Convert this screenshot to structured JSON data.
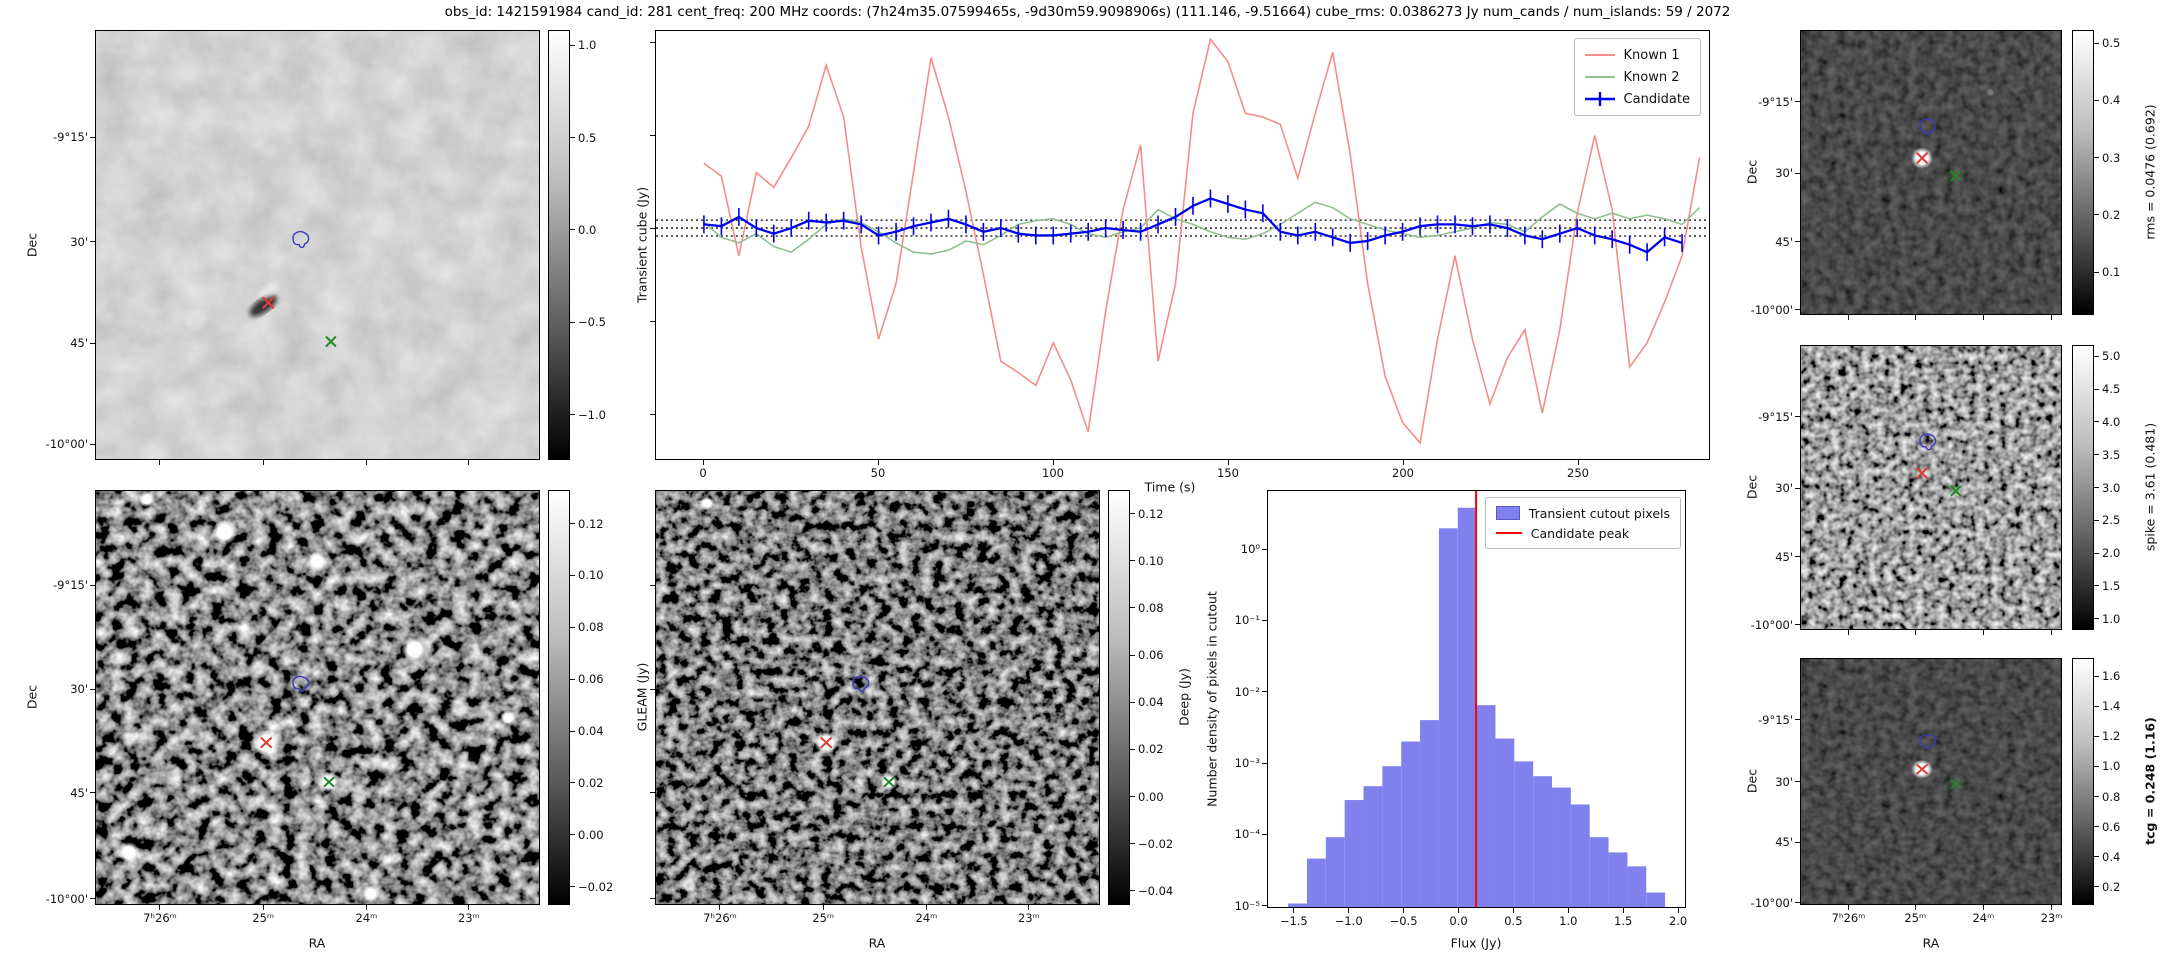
{
  "title": "obs_id: 1421591984 cand_id: 281 cent_freq: 200 MHz coords: (7h24m35.07599465s, -9d30m59.9098906s) (111.146, -9.51664) cube_rms: 0.0386273 Jy num_cands / num_islands: 59 / 2072",
  "axis_labels": {
    "dec": "Dec",
    "ra": "RA",
    "time": "Time (s)",
    "flux": "Flux (Jy)",
    "hist_y": "Number density of pixels in cutout"
  },
  "dec_ticks": [
    "-9°15'",
    "30'",
    "45'",
    "-10°00'"
  ],
  "ra_ticks": [
    "7ʰ26ᵐ",
    "25ᵐ",
    "24ᵐ",
    "23ᵐ"
  ],
  "colorbars": {
    "transient_cube": {
      "label": "Transient cube (Jy)",
      "ticks": [
        "1.0",
        "0.5",
        "0.0",
        "−0.5",
        "−1.0"
      ]
    },
    "rms": {
      "label": "rms = 0.0476 (0.692)",
      "ticks": [
        "0.5",
        "0.4",
        "0.3",
        "0.2",
        "0.1"
      ]
    },
    "spike": {
      "label": "spike = 3.61 (0.481)",
      "ticks": [
        "5.0",
        "4.5",
        "4.0",
        "3.5",
        "3.0",
        "2.5",
        "2.0",
        "1.5",
        "1.0"
      ]
    },
    "tcg": {
      "label": "tcg = 0.248 (1.16)",
      "ticks": [
        "1.6",
        "1.4",
        "1.2",
        "1.0",
        "0.8",
        "0.6",
        "0.4",
        "0.2"
      ]
    },
    "gleam": {
      "label": "GLEAM (Jy)",
      "ticks": [
        "0.12",
        "0.10",
        "0.08",
        "0.06",
        "0.04",
        "0.02",
        "0.00",
        "−0.02"
      ]
    },
    "deep": {
      "label": "Deep (Jy)",
      "ticks": [
        "0.12",
        "0.10",
        "0.08",
        "0.06",
        "0.04",
        "0.02",
        "0.00",
        "−0.02",
        "−0.04"
      ]
    }
  },
  "markers": {
    "candidate_marker": "red-x",
    "known_source_marker": "green-x",
    "island_contour": "blue-contour"
  },
  "chart_data": [
    {
      "type": "line",
      "title": "",
      "xlabel": "Time (s)",
      "ylabel": "",
      "xlim": [
        -15,
        297
      ],
      "ylim": [
        -1.25,
        1.07
      ],
      "x_ticks": [
        0,
        50,
        100,
        150,
        200,
        250
      ],
      "reference_lines": [
        0.043,
        0.0,
        -0.043
      ],
      "legend_position": "upper right",
      "series": [
        {
          "name": "Known 1",
          "color": "#f58c87",
          "x": [
            0,
            5,
            10,
            15,
            20,
            25,
            30,
            35,
            40,
            45,
            50,
            55,
            60,
            65,
            70,
            75,
            80,
            85,
            90,
            95,
            100,
            105,
            110,
            115,
            120,
            125,
            130,
            135,
            140,
            145,
            150,
            155,
            160,
            165,
            170,
            175,
            180,
            185,
            190,
            195,
            200,
            205,
            210,
            215,
            220,
            225,
            230,
            235,
            240,
            245,
            250,
            255,
            260,
            265,
            270,
            275,
            280,
            285
          ],
          "values": [
            0.35,
            0.28,
            -0.15,
            0.3,
            0.22,
            0.38,
            0.55,
            0.88,
            0.6,
            -0.1,
            -0.6,
            -0.3,
            0.3,
            0.92,
            0.6,
            0.2,
            -0.25,
            -0.72,
            -0.78,
            -0.85,
            -0.62,
            -0.82,
            -1.1,
            -0.45,
            0.1,
            0.45,
            -0.72,
            -0.3,
            0.62,
            1.02,
            0.9,
            0.62,
            0.6,
            0.56,
            0.27,
            0.62,
            0.95,
            0.4,
            -0.3,
            -0.8,
            -1.05,
            -1.16,
            -0.6,
            -0.15,
            -0.6,
            -0.95,
            -0.7,
            -0.55,
            -1.0,
            -0.55,
            0.08,
            0.5,
            0.1,
            -0.75,
            -0.62,
            -0.4,
            -0.15,
            0.38
          ]
        },
        {
          "name": "Known 2",
          "color": "#8fbf8f",
          "x": [
            0,
            5,
            10,
            15,
            20,
            25,
            30,
            35,
            40,
            45,
            50,
            55,
            60,
            65,
            70,
            75,
            80,
            85,
            90,
            95,
            100,
            105,
            110,
            115,
            120,
            125,
            130,
            135,
            140,
            145,
            150,
            155,
            160,
            165,
            170,
            175,
            180,
            185,
            190,
            195,
            200,
            205,
            210,
            215,
            220,
            225,
            230,
            235,
            240,
            245,
            250,
            255,
            260,
            265,
            270,
            275,
            280,
            285
          ],
          "values": [
            0.03,
            -0.05,
            -0.08,
            -0.03,
            -0.1,
            -0.13,
            -0.06,
            0.02,
            0.05,
            0.03,
            -0.02,
            -0.08,
            -0.13,
            -0.14,
            -0.12,
            -0.07,
            -0.09,
            -0.04,
            0.02,
            0.04,
            0.05,
            0.02,
            -0.03,
            -0.05,
            -0.02,
            0.0,
            0.1,
            0.05,
            0.02,
            -0.02,
            -0.05,
            -0.06,
            -0.03,
            0.02,
            0.08,
            0.14,
            0.11,
            0.05,
            0.02,
            -0.01,
            -0.03,
            -0.05,
            -0.04,
            -0.02,
            0.0,
            0.03,
            0.02,
            -0.02,
            0.06,
            0.13,
            0.08,
            0.05,
            0.08,
            0.05,
            0.07,
            0.05,
            0.02,
            0.11
          ]
        },
        {
          "name": "Candidate",
          "color": "#0000ee",
          "yerr": 0.05,
          "x": [
            0,
            5,
            10,
            15,
            20,
            25,
            30,
            35,
            40,
            45,
            50,
            55,
            60,
            65,
            70,
            75,
            80,
            85,
            90,
            95,
            100,
            105,
            110,
            115,
            120,
            125,
            130,
            135,
            140,
            145,
            150,
            155,
            160,
            165,
            170,
            175,
            180,
            185,
            190,
            195,
            200,
            205,
            210,
            215,
            220,
            225,
            230,
            235,
            240,
            245,
            250,
            255,
            260,
            265,
            270,
            275,
            280
          ],
          "values": [
            0.02,
            0.01,
            0.06,
            0.0,
            -0.03,
            0.0,
            0.04,
            0.03,
            0.04,
            0.02,
            -0.04,
            -0.02,
            0.01,
            0.03,
            0.05,
            0.02,
            -0.02,
            0.0,
            -0.03,
            -0.04,
            -0.04,
            -0.03,
            -0.02,
            0.0,
            -0.01,
            -0.02,
            0.02,
            0.06,
            0.12,
            0.16,
            0.13,
            0.1,
            0.08,
            -0.02,
            -0.04,
            -0.02,
            -0.05,
            -0.08,
            -0.07,
            -0.04,
            -0.02,
            0.01,
            0.02,
            0.02,
            0.01,
            0.02,
            0.0,
            -0.04,
            -0.06,
            -0.03,
            0.0,
            -0.04,
            -0.06,
            -0.09,
            -0.13,
            -0.05,
            -0.08
          ]
        }
      ]
    },
    {
      "type": "bar",
      "title": "",
      "xlabel": "Flux (Jy)",
      "ylabel": "Number density of pixels in cutout",
      "yscale": "log",
      "xlim": [
        -1.74,
        2.08
      ],
      "ylim": [
        5e-06,
        6.7
      ],
      "x_ticks": [
        -1.5,
        -1.0,
        -0.5,
        0.0,
        0.5,
        1.0,
        1.5,
        2.0
      ],
      "x_tick_labels": [
        "−1.5",
        "−1.0",
        "−0.5",
        "0.0",
        "0.5",
        "1.0",
        "1.5",
        "2.0"
      ],
      "y_tick_labels": [
        "10⁰",
        "10⁻¹",
        "10⁻²",
        "10⁻³",
        "10⁻⁴",
        "10⁻⁵"
      ],
      "bin_edges": [
        -1.56,
        -1.3875,
        -1.215,
        -1.0425,
        -0.87,
        -0.6975,
        -0.525,
        -0.3525,
        -0.18,
        -0.0075,
        0.165,
        0.3375,
        0.51,
        0.6825,
        0.855,
        1.0275,
        1.2,
        1.3725,
        1.545,
        1.7175,
        1.89
      ],
      "values": [
        1.05e-05,
        4.5e-05,
        9e-05,
        0.0003,
        0.00047,
        0.0009,
        0.002,
        0.004,
        2.0,
        3.9,
        0.0065,
        0.0022,
        0.00105,
        0.00065,
        0.00045,
        0.00026,
        9e-05,
        5.5e-05,
        3.5e-05,
        1.5e-05
      ],
      "candidate_peak": 0.16,
      "legend": [
        "Transient cutout pixels",
        "Candidate peak"
      ],
      "bar_color": "#8181ed",
      "line_color": "#ff0000"
    }
  ]
}
